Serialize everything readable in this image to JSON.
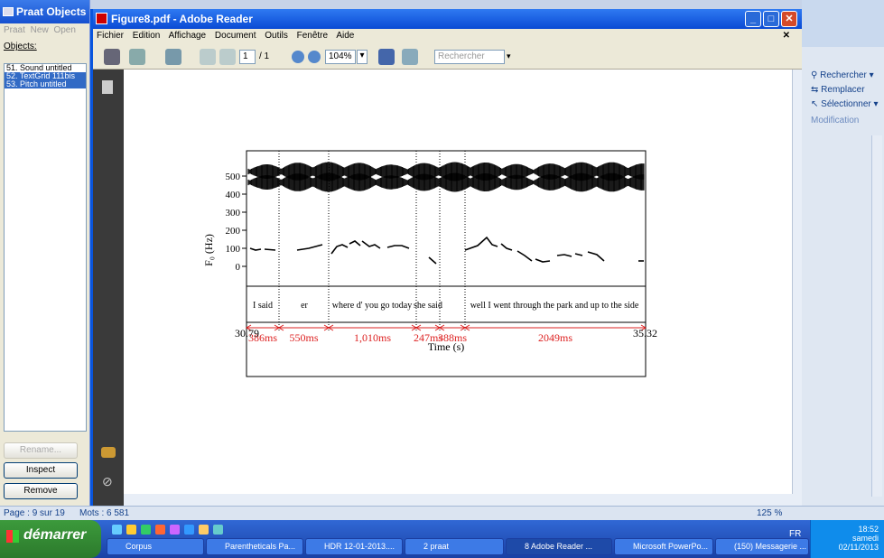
{
  "praat": {
    "title": "Praat Objects",
    "menu": "Praat New Open",
    "objects_label": "Objects:",
    "objects": [
      "51. Sound untitled",
      "52. TextGrid 111bis",
      "53. Pitch untitled"
    ],
    "rename": "Rename...",
    "inspect": "Inspect",
    "remove": "Remove"
  },
  "word": {
    "rechercher": "Rechercher",
    "remplacer": "Remplacer",
    "selectionner": "Sélectionner",
    "modification": "Modification"
  },
  "reader": {
    "title": "Figure8.pdf - Adobe Reader",
    "menus": [
      "Fichier",
      "Edition",
      "Affichage",
      "Document",
      "Outils",
      "Fenêtre",
      "Aide"
    ],
    "page_current": "1",
    "page_total": "/ 1",
    "zoom": "104%",
    "search_placeholder": "Rechercher"
  },
  "figure": {
    "ylabel": "F₀ (Hz)",
    "yticks": [
      "500",
      "400",
      "300",
      "200",
      "100",
      "0"
    ],
    "xlabel": "Time (s)",
    "t_start": "30.79",
    "t_end": "35.32",
    "intervals": [
      "I said",
      "er",
      "where d' you go today",
      "she said",
      "",
      "well I went through the park and up to the side"
    ],
    "durations": [
      "386ms",
      "550ms",
      "1,010ms",
      "247ms",
      "388ms",
      "2049ms"
    ]
  },
  "status": {
    "page": "Page : 9 sur 19",
    "words": "Mots : 6 581",
    "zoom": "125 %"
  },
  "taskbar": {
    "start": "démarrer",
    "items": [
      "Corpus",
      "Parentheticals Pa...",
      "HDR 12-01-2013....",
      "2 praat",
      "8 Adobe Reader ...",
      "Microsoft PowerPo...",
      "(150) Messagerie ..."
    ],
    "lang": "FR",
    "time": "18:52",
    "day": "samedi",
    "date": "02/11/2013"
  }
}
